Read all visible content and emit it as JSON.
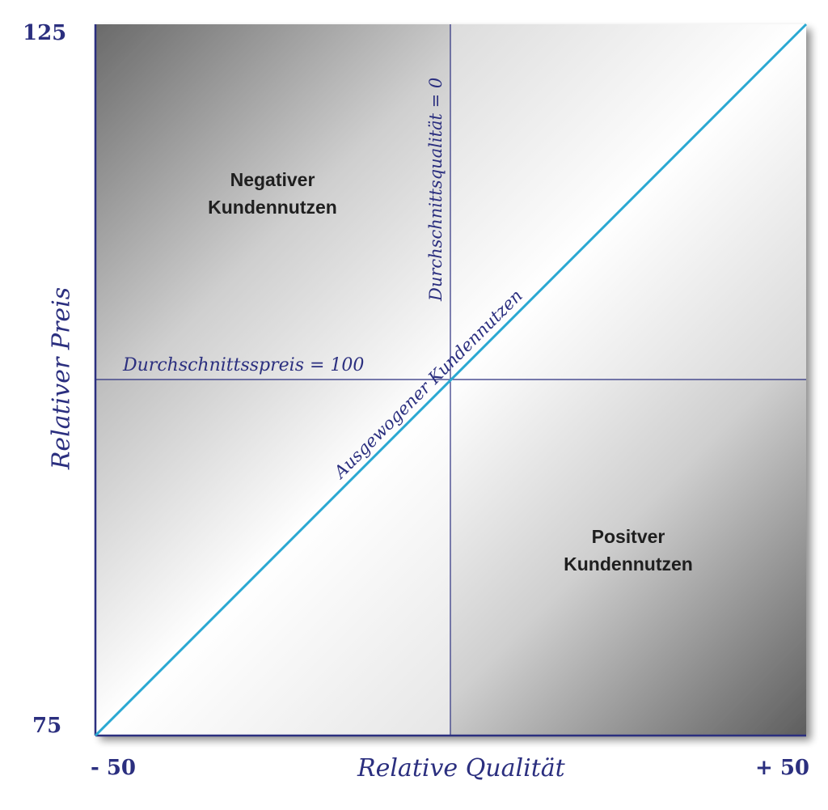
{
  "diagram": {
    "axes": {
      "x_title": "Relative Qualität",
      "y_title": "Relativer Preis",
      "x_min_label": "- 50",
      "x_max_label": "+ 50",
      "y_min_label": "75",
      "y_max_label": "125"
    },
    "reference_lines": {
      "average_price_label": "Durchschnittsspreis = 100",
      "average_quality_label": "Durchschnittsqualität = 0",
      "balanced_value_label": "Ausgewogener Kundennutzen"
    },
    "regions": {
      "negative": [
        "Negativer",
        "Kundennutzen"
      ],
      "positive": [
        "Positver",
        "Kundennutzen"
      ]
    },
    "colors": {
      "axis_text": "#2b2f7f",
      "frame": "#2b2f7f",
      "diagonal": "#2aa8d2",
      "region_text": "#1f1f1f"
    }
  }
}
